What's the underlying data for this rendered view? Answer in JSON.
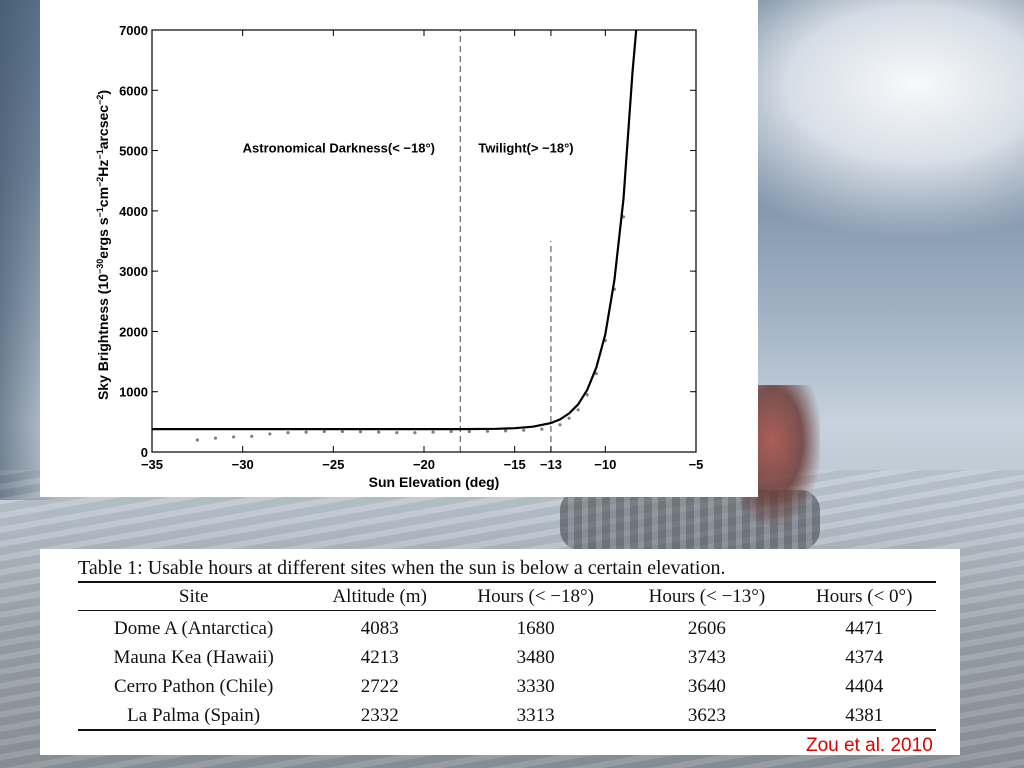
{
  "chart_data": {
    "type": "line",
    "title": "",
    "xlabel": "Sun Elevation (deg)",
    "ylabel": "Sky Brightness (10",
    "ylabel_parts": {
      "base": "Sky Brightness (10",
      "exp1": "−30",
      "mid1": "ergs s",
      "exp2": "−1",
      "mid2": "cm",
      "exp3": "−2",
      "mid3": "Hz",
      "exp4": "−1",
      "mid4": "arcsec",
      "exp5": "−2",
      "end": ")"
    },
    "xlim": [
      -35,
      -5
    ],
    "ylim": [
      0,
      7000
    ],
    "x_ticks": [
      -35,
      -30,
      -25,
      -20,
      -15,
      -13,
      -10,
      -5
    ],
    "x_tick_labels": [
      "−35",
      "−30",
      "−25",
      "−20",
      "−15",
      "−13",
      "−10",
      "−5"
    ],
    "y_ticks": [
      0,
      1000,
      2000,
      3000,
      4000,
      5000,
      6000,
      7000
    ],
    "y_tick_labels": [
      "0",
      "1000",
      "2000",
      "3000",
      "4000",
      "5000",
      "6000",
      "7000"
    ],
    "grid": false,
    "annotations": [
      {
        "text": "Astronomical Darkness(< −18°)",
        "x": -30,
        "y": 4970
      },
      {
        "text": "Twilight(> −18°)",
        "x": -17,
        "y": 4970
      }
    ],
    "vlines": [
      {
        "x": -18,
        "ymin": 0,
        "ymax": 7000,
        "style": "dashed"
      },
      {
        "x": -13,
        "ymin": 0,
        "ymax": 3500,
        "style": "dashed"
      }
    ],
    "series": [
      {
        "role": "fit",
        "style": "solid",
        "x": [
          -35,
          -32,
          -30,
          -27,
          -25,
          -22,
          -20,
          -18,
          -16,
          -15,
          -14,
          -13,
          -12.5,
          -12,
          -11.5,
          -11,
          -10.5,
          -10,
          -9.5,
          -9,
          -8.5,
          -8.3
        ],
        "y": [
          380,
          380,
          380,
          380,
          380,
          380,
          380,
          380,
          385,
          395,
          420,
          480,
          540,
          640,
          790,
          1030,
          1400,
          1950,
          2850,
          4200,
          6300,
          7000
        ]
      },
      {
        "role": "observations",
        "style": "scatter",
        "x": [
          -32.5,
          -31.5,
          -30.5,
          -29.5,
          -28.5,
          -27.5,
          -26.5,
          -25.5,
          -24.5,
          -23.5,
          -22.5,
          -21.5,
          -20.5,
          -19.5,
          -18.5,
          -17.5,
          -16.5,
          -15.5,
          -14.5,
          -13.5,
          -12.5,
          -12,
          -11.5,
          -11,
          -10.5,
          -10,
          -9.5,
          -9
        ],
        "y": [
          200,
          230,
          250,
          260,
          300,
          320,
          330,
          340,
          340,
          335,
          330,
          320,
          320,
          330,
          340,
          340,
          345,
          350,
          360,
          380,
          450,
          560,
          700,
          950,
          1300,
          1850,
          2700,
          3900
        ]
      }
    ]
  },
  "table": {
    "caption": "Table 1: Usable hours at different sites when the sun is below a certain elevation.",
    "headers": [
      "Site",
      "Altitude (m)",
      "Hours (< −18°)",
      "Hours (< −13°)",
      "Hours (< 0°)"
    ],
    "rows": [
      [
        "Dome A (Antarctica)",
        "4083",
        "1680",
        "2606",
        "4471"
      ],
      [
        "Mauna Kea (Hawaii)",
        "4213",
        "3480",
        "3743",
        "4374"
      ],
      [
        "Cerro Pathon (Chile)",
        "2722",
        "3330",
        "3640",
        "4404"
      ],
      [
        "La Palma (Spain)",
        "2332",
        "3313",
        "3623",
        "4381"
      ]
    ]
  },
  "citation": "Zou et al. 2010",
  "colors": {
    "citation": "#e00000",
    "panel": "#ffffff",
    "ink": "#000000"
  }
}
